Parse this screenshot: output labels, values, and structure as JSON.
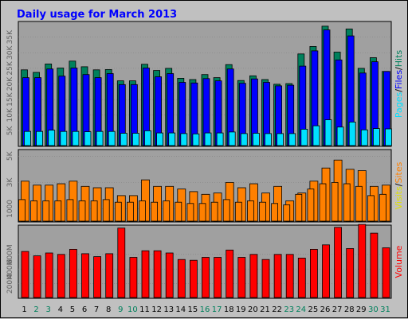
{
  "title": "Daily usage for March 2013",
  "colors": {
    "background": "#c0c0c0",
    "panel": "#a0a0a0",
    "hits": "#00805c",
    "files": "#0000ff",
    "pages": "#00e0ff",
    "visits": "#ff8000",
    "sites": "#ff8000",
    "volume": "#ff0000",
    "weekday_label": "#000000",
    "weekend_label": "#00805c"
  },
  "chart_data": [
    {
      "type": "bar",
      "panel": "hits-files-pages",
      "x": [
        1,
        2,
        3,
        4,
        5,
        6,
        7,
        8,
        9,
        10,
        11,
        12,
        13,
        14,
        15,
        16,
        17,
        18,
        19,
        20,
        21,
        22,
        23,
        24,
        25,
        26,
        27,
        28,
        29,
        30,
        31
      ],
      "tick_labels": [
        "5K",
        "10K",
        "15K",
        "20K",
        "25K",
        "30K",
        "35K"
      ],
      "side_label_parts": [
        "Pages",
        "/",
        "Files",
        "/",
        "Hits"
      ],
      "ylim": [
        0,
        40000
      ],
      "series": [
        {
          "name": "Hits",
          "values": [
            24500,
            23700,
            26400,
            25100,
            27300,
            25500,
            24500,
            24600,
            21000,
            21000,
            26300,
            24300,
            25000,
            21800,
            21400,
            23000,
            22000,
            26200,
            21100,
            22600,
            21400,
            19900,
            20100,
            29600,
            32000,
            38500,
            30200,
            37600,
            25000,
            28400,
            24000
          ]
        },
        {
          "name": "Files",
          "values": [
            22000,
            22000,
            24800,
            22500,
            25100,
            23000,
            22000,
            23300,
            19800,
            19800,
            25100,
            22300,
            23300,
            20500,
            20300,
            21700,
            21000,
            24800,
            20200,
            21600,
            20500,
            19400,
            19600,
            25700,
            30600,
            37300,
            27700,
            35400,
            23500,
            27100,
            24000
          ]
        },
        {
          "name": "Pages",
          "values": [
            4800,
            4800,
            5200,
            4800,
            4800,
            4700,
            4800,
            4800,
            4200,
            4200,
            5000,
            4300,
            4300,
            4100,
            4000,
            4300,
            4300,
            4600,
            4100,
            4200,
            4100,
            4100,
            4100,
            5500,
            6600,
            8500,
            6200,
            7800,
            5300,
            5700,
            5600
          ]
        }
      ]
    },
    {
      "type": "bar",
      "panel": "visits-sites",
      "x": [
        1,
        2,
        3,
        4,
        5,
        6,
        7,
        8,
        9,
        10,
        11,
        12,
        13,
        14,
        15,
        16,
        17,
        18,
        19,
        20,
        21,
        22,
        23,
        24,
        25,
        26,
        27,
        28,
        29,
        30,
        31
      ],
      "tick_labels": [
        "1000",
        "3K",
        "5K"
      ],
      "side_label_parts": [
        "Visits",
        "/",
        "Sites"
      ],
      "ylim": [
        0,
        5500
      ],
      "series": [
        {
          "name": "Visits",
          "values": [
            3100,
            2800,
            2800,
            2900,
            3100,
            2700,
            2600,
            2600,
            2000,
            2000,
            3200,
            2700,
            2700,
            2500,
            2300,
            2100,
            2200,
            3000,
            2600,
            2900,
            2200,
            2700,
            1600,
            2200,
            3100,
            4100,
            4700,
            4000,
            3900,
            2700,
            2800
          ]
        },
        {
          "name": "Sites",
          "values": [
            1700,
            1600,
            1600,
            1600,
            1700,
            1600,
            1600,
            1700,
            1500,
            1500,
            1600,
            1500,
            1600,
            1500,
            1400,
            1400,
            1500,
            1700,
            1500,
            1600,
            1500,
            1400,
            1300,
            2100,
            2500,
            2900,
            3000,
            2900,
            2700,
            2000,
            2100
          ]
        }
      ]
    },
    {
      "type": "bar",
      "panel": "volume",
      "x": [
        1,
        2,
        3,
        4,
        5,
        6,
        7,
        8,
        9,
        10,
        11,
        12,
        13,
        14,
        15,
        16,
        17,
        18,
        19,
        20,
        21,
        22,
        23,
        24,
        25,
        26,
        27,
        28,
        29,
        30,
        31
      ],
      "tick_labels": [
        "200M",
        "400M",
        "600M"
      ],
      "side_label_parts": [
        "Volume"
      ],
      "ylim": [
        0,
        1000
      ],
      "series": [
        {
          "name": "Volume",
          "values": [
            640,
            580,
            620,
            600,
            670,
            610,
            570,
            610,
            960,
            560,
            650,
            650,
            620,
            530,
            520,
            560,
            560,
            660,
            560,
            600,
            530,
            600,
            600,
            550,
            670,
            730,
            970,
            680,
            1010,
            890,
            690
          ]
        }
      ]
    }
  ]
}
